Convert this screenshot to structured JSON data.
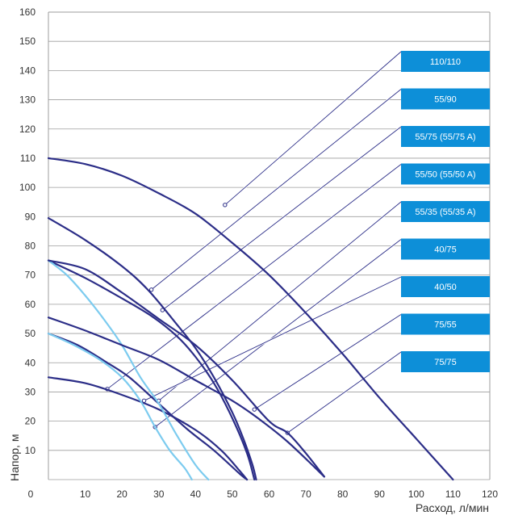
{
  "chart_data": {
    "type": "line",
    "title": "",
    "xlabel": "Расход, л/мин",
    "ylabel": "Напор, м",
    "xlim": [
      0,
      120
    ],
    "ylim": [
      0,
      160
    ],
    "x_ticks": [
      "0",
      "10",
      "20",
      "30",
      "40",
      "50",
      "60",
      "70",
      "80",
      "90",
      "100",
      "110",
      "120"
    ],
    "y_ticks": [
      "10",
      "20",
      "30",
      "40",
      "50",
      "60",
      "70",
      "80",
      "90",
      "100",
      "110",
      "120",
      "130",
      "140",
      "150",
      "160"
    ],
    "grid": "horizontal",
    "legend_position": "right",
    "colors": {
      "dark": "#2b2d87",
      "light": "#7ccbef",
      "label_bg": "#0d8fd8",
      "grid": "#9e9e9e",
      "leader": "#2b2d87"
    },
    "series": [
      {
        "name": "110/110",
        "color": "dark",
        "points": [
          [
            0,
            110
          ],
          [
            10,
            108
          ],
          [
            20,
            104
          ],
          [
            30,
            98
          ],
          [
            40,
            91
          ],
          [
            50,
            81
          ],
          [
            60,
            70
          ],
          [
            70,
            57
          ],
          [
            80,
            43
          ],
          [
            90,
            28
          ],
          [
            100,
            14
          ],
          [
            110,
            0
          ]
        ],
        "anchor": [
          48,
          94
        ]
      },
      {
        "name": "55/90",
        "color": "dark",
        "points": [
          [
            0,
            89.5
          ],
          [
            10,
            82
          ],
          [
            20,
            73
          ],
          [
            27,
            65
          ],
          [
            35,
            53
          ],
          [
            40,
            45
          ],
          [
            45,
            35
          ],
          [
            50,
            23
          ],
          [
            53,
            14
          ],
          [
            55.5,
            5
          ],
          [
            56.5,
            0
          ]
        ],
        "anchor": [
          28,
          65
        ]
      },
      {
        "name": "55/75 (55/75 A)",
        "color": "dark",
        "points": [
          [
            0,
            75
          ],
          [
            10,
            69
          ],
          [
            20,
            62
          ],
          [
            28,
            56
          ],
          [
            35,
            49
          ],
          [
            40,
            42
          ],
          [
            45,
            33
          ],
          [
            50,
            21
          ],
          [
            54,
            9
          ],
          [
            56,
            0
          ]
        ],
        "anchor": [
          31,
          58
        ]
      },
      {
        "name": "55/50 (55/50 A)",
        "color": "dark",
        "points": [
          [
            0,
            50
          ],
          [
            8,
            46
          ],
          [
            16,
            40
          ],
          [
            22,
            35
          ],
          [
            30,
            26
          ],
          [
            38,
            17
          ],
          [
            45,
            10
          ],
          [
            52,
            2
          ],
          [
            54,
            0
          ]
        ],
        "anchor": [
          16,
          31
        ]
      },
      {
        "name": "55/35 (55/35 A)",
        "color": "dark",
        "points": [
          [
            0,
            35
          ],
          [
            10,
            33
          ],
          [
            20,
            29
          ],
          [
            30,
            24
          ],
          [
            40,
            17
          ],
          [
            47,
            10
          ],
          [
            52,
            3
          ],
          [
            54,
            0
          ]
        ],
        "anchor": [
          30,
          27
        ]
      },
      {
        "name": "40/75",
        "color": "light",
        "points": [
          [
            0,
            75
          ],
          [
            5,
            70
          ],
          [
            10,
            63
          ],
          [
            15,
            55
          ],
          [
            20,
            46
          ],
          [
            25,
            35
          ],
          [
            30,
            26
          ],
          [
            35,
            15
          ],
          [
            40,
            5
          ],
          [
            43.5,
            0
          ]
        ],
        "anchor": [
          29,
          18
        ]
      },
      {
        "name": "40/50",
        "color": "light",
        "points": [
          [
            0,
            50
          ],
          [
            7,
            46
          ],
          [
            14,
            41
          ],
          [
            20,
            35
          ],
          [
            25,
            27
          ],
          [
            29,
            18
          ],
          [
            33,
            10
          ],
          [
            37,
            4
          ],
          [
            39,
            0
          ]
        ],
        "anchor": [
          26,
          27
        ]
      },
      {
        "name": "75/55",
        "color": "dark",
        "points": [
          [
            0,
            55.5
          ],
          [
            10,
            51
          ],
          [
            20,
            46
          ],
          [
            30,
            41
          ],
          [
            40,
            34
          ],
          [
            50,
            27
          ],
          [
            57,
            21
          ],
          [
            65,
            13
          ],
          [
            75,
            1
          ]
        ],
        "anchor": [
          56,
          24
        ]
      },
      {
        "name": "75/75",
        "color": "dark",
        "points": [
          [
            0,
            75
          ],
          [
            10,
            72
          ],
          [
            20,
            64
          ],
          [
            30,
            55
          ],
          [
            40,
            46
          ],
          [
            50,
            34
          ],
          [
            60,
            20
          ],
          [
            65,
            16
          ],
          [
            70,
            9
          ],
          [
            75,
            1
          ]
        ],
        "anchor": [
          65,
          16
        ]
      }
    ]
  }
}
